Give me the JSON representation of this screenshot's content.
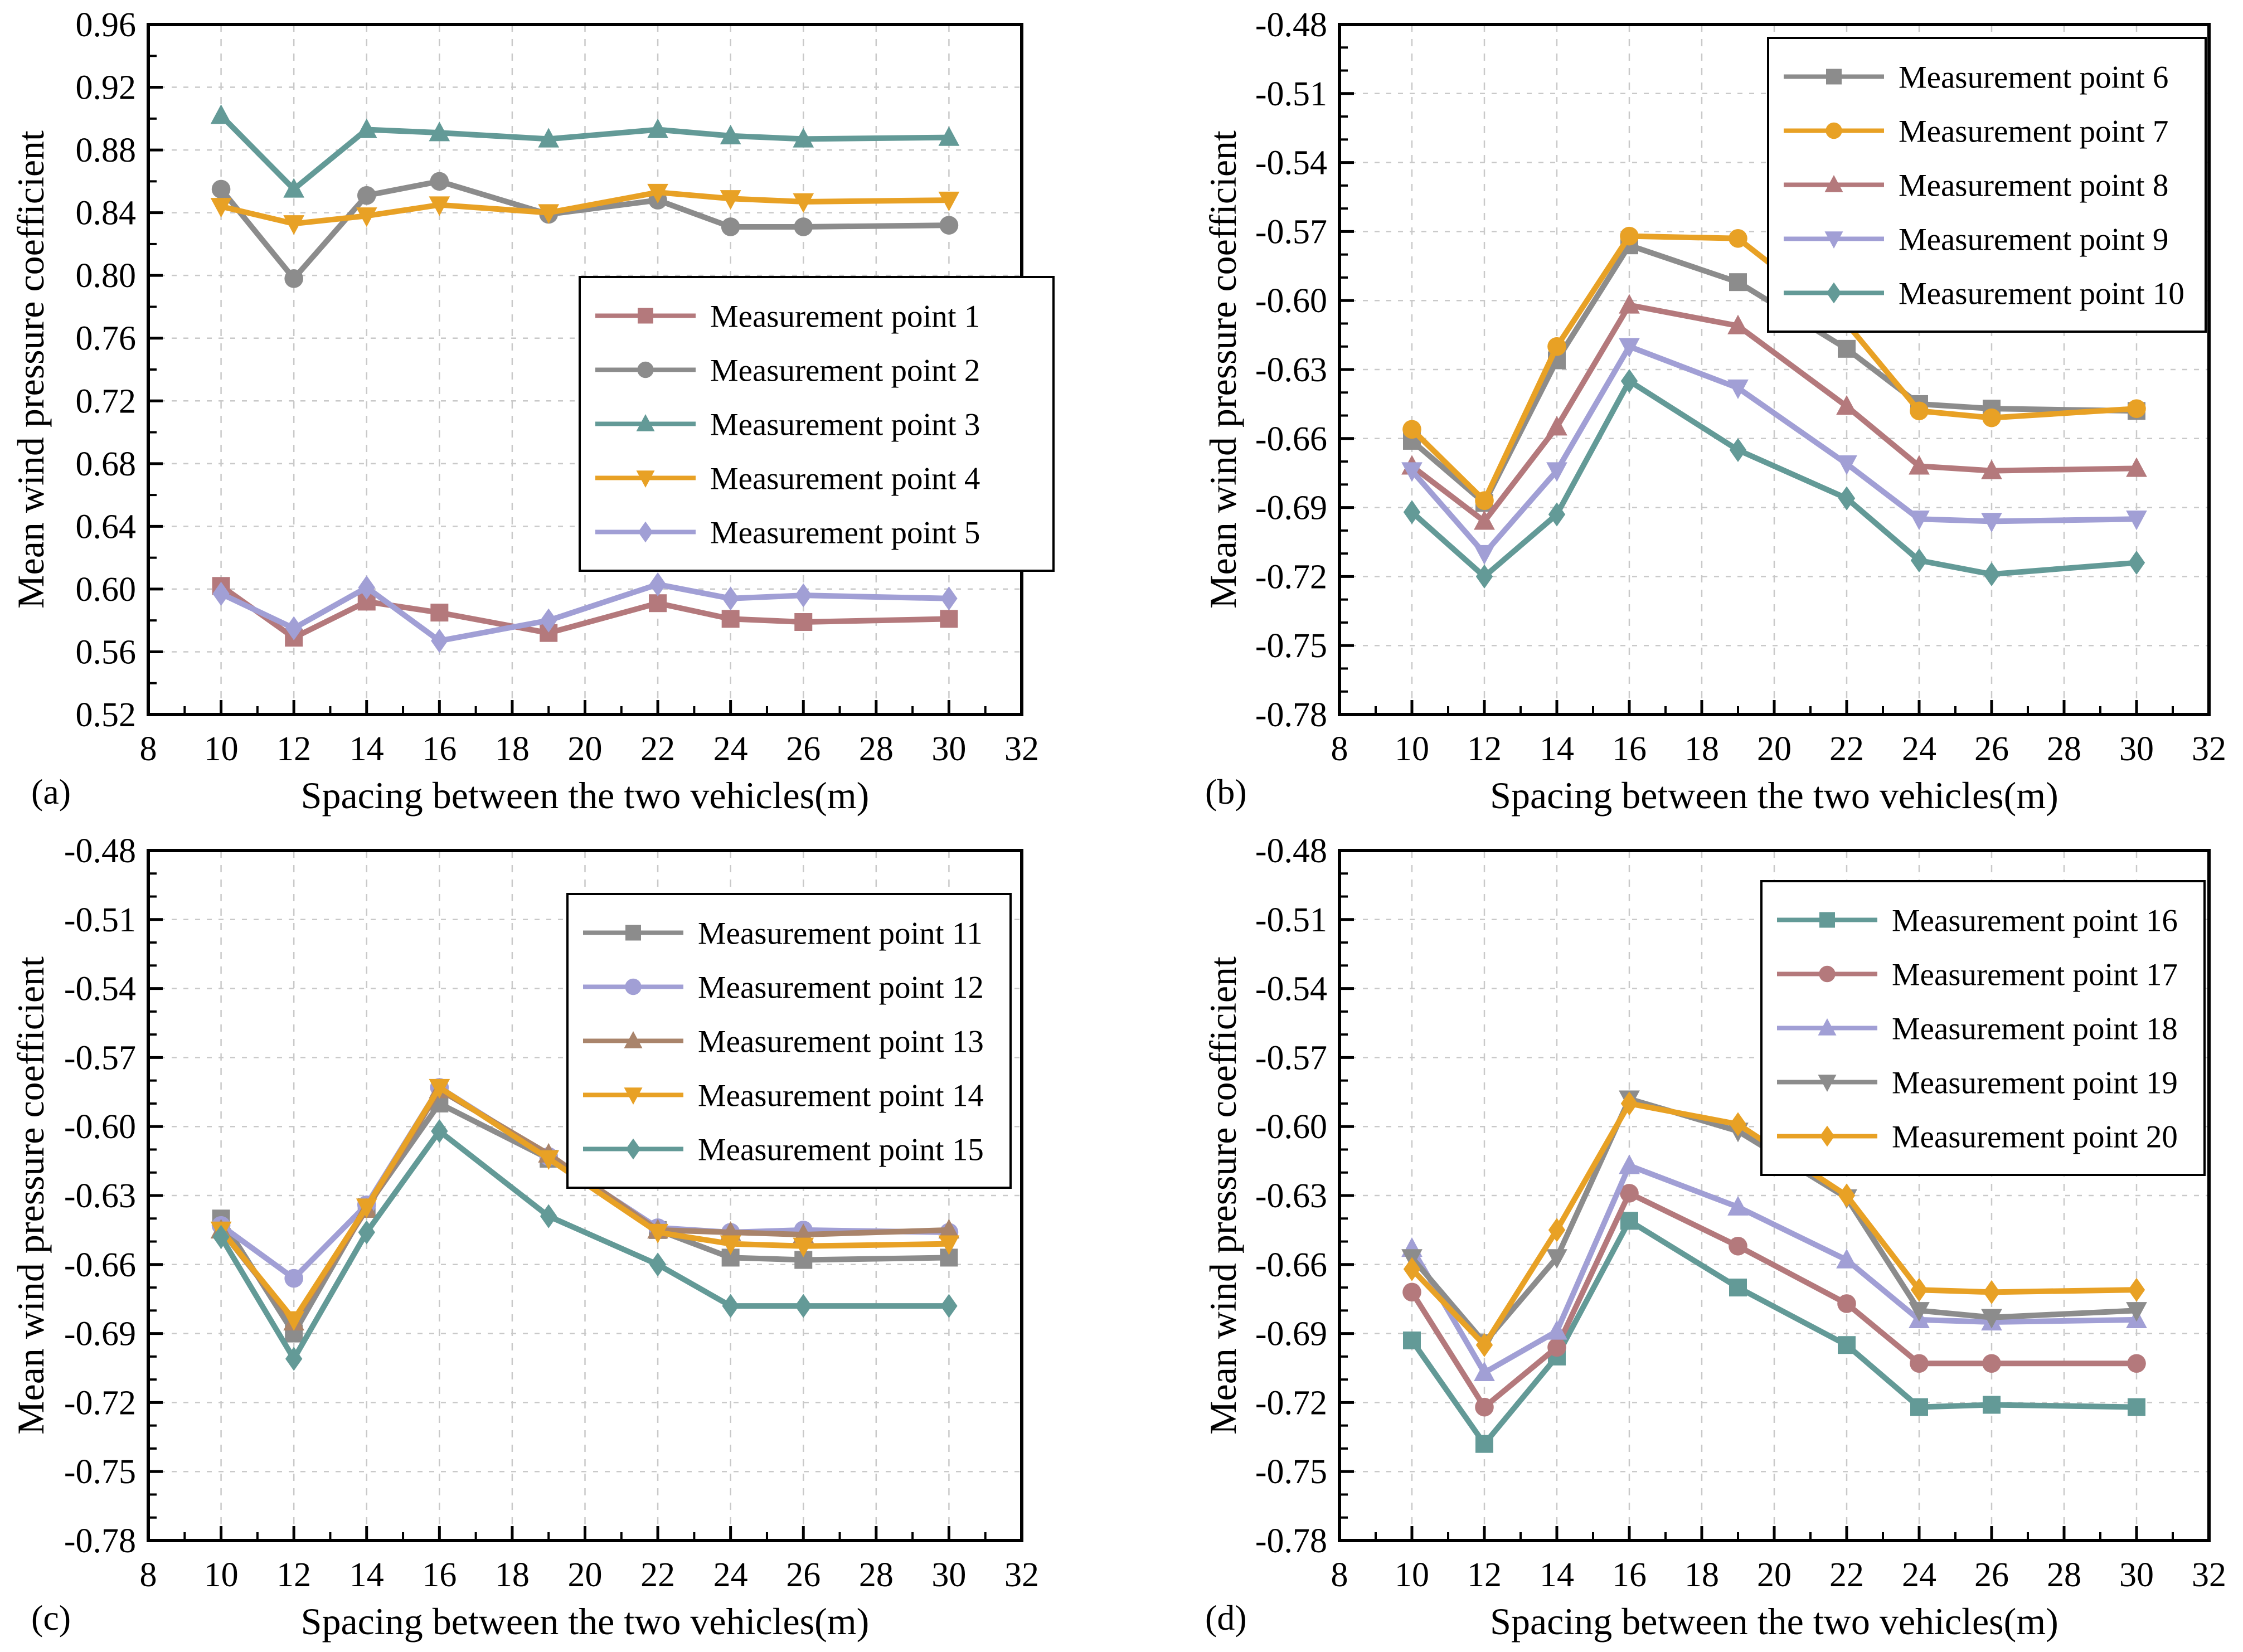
{
  "figure_title": "",
  "accent_colors": {
    "rose": "#b4797c",
    "gray": "#8c8c8c",
    "teal": "#639a97",
    "orange": "#e8a125",
    "purple": "#a19fd5",
    "brown": "#a9846b",
    "grid": "#c9c9c9",
    "axis": "#000000"
  },
  "chart_data": [
    {
      "type": "line",
      "panel_label": "(a)",
      "xlabel": "Spacing between the two vehicles(m)",
      "ylabel": "Mean wind pressure coefficient",
      "xlim": [
        8,
        32
      ],
      "ylim": [
        0.52,
        0.96
      ],
      "xticks": [
        8,
        10,
        12,
        14,
        16,
        18,
        20,
        22,
        24,
        26,
        28,
        30,
        32
      ],
      "yticks": [
        0.52,
        0.56,
        0.6,
        0.64,
        0.68,
        0.72,
        0.76,
        0.8,
        0.84,
        0.88,
        0.92,
        0.96
      ],
      "x_minor_step": 1,
      "y_minor_step": 0.02,
      "grid": true,
      "legend_position": "center-right",
      "x": [
        10,
        12,
        14,
        16,
        19,
        22,
        24,
        26,
        30
      ],
      "series": [
        {
          "name": "Measurement point 1",
          "color": "#b4797c",
          "marker": "square",
          "values": [
            0.602,
            0.569,
            0.592,
            0.585,
            0.572,
            0.591,
            0.581,
            0.579,
            0.581
          ]
        },
        {
          "name": "Measurement point 2",
          "color": "#8c8c8c",
          "marker": "circle",
          "values": [
            0.855,
            0.798,
            0.851,
            0.86,
            0.839,
            0.848,
            0.831,
            0.831,
            0.832
          ]
        },
        {
          "name": "Measurement point 3",
          "color": "#639a97",
          "marker": "triangle-up",
          "values": [
            0.902,
            0.855,
            0.893,
            0.891,
            0.887,
            0.893,
            0.889,
            0.887,
            0.888
          ]
        },
        {
          "name": "Measurement point 4",
          "color": "#e8a125",
          "marker": "triangle-down",
          "values": [
            0.844,
            0.833,
            0.838,
            0.845,
            0.84,
            0.853,
            0.849,
            0.847,
            0.848
          ]
        },
        {
          "name": "Measurement point 5",
          "color": "#a19fd5",
          "marker": "diamond",
          "values": [
            0.597,
            0.575,
            0.601,
            0.567,
            0.58,
            0.603,
            0.594,
            0.596,
            0.594
          ]
        }
      ]
    },
    {
      "type": "line",
      "panel_label": "(b)",
      "xlabel": "Spacing between the two vehicles(m)",
      "ylabel": "Mean wind pressure coefficient",
      "xlim": [
        8,
        32
      ],
      "ylim": [
        -0.78,
        -0.48
      ],
      "xticks": [
        8,
        10,
        12,
        14,
        16,
        18,
        20,
        22,
        24,
        26,
        28,
        30,
        32
      ],
      "yticks": [
        -0.78,
        -0.75,
        -0.72,
        -0.69,
        -0.66,
        -0.63,
        -0.6,
        -0.57,
        -0.54,
        -0.51,
        -0.48
      ],
      "x_minor_step": 1,
      "y_minor_step": 0.01,
      "grid": true,
      "legend_position": "top-right",
      "x": [
        10,
        12,
        14,
        16,
        19,
        22,
        24,
        26,
        30
      ],
      "series": [
        {
          "name": "Measurement point 6",
          "color": "#8c8c8c",
          "marker": "square",
          "values": [
            -0.661,
            -0.688,
            -0.626,
            -0.576,
            -0.592,
            -0.621,
            -0.645,
            -0.647,
            -0.648
          ]
        },
        {
          "name": "Measurement point 7",
          "color": "#e8a125",
          "marker": "circle",
          "values": [
            -0.656,
            -0.687,
            -0.62,
            -0.572,
            -0.573,
            -0.61,
            -0.648,
            -0.651,
            -0.647
          ]
        },
        {
          "name": "Measurement point 8",
          "color": "#b4797c",
          "marker": "triangle-up",
          "values": [
            -0.672,
            -0.696,
            -0.655,
            -0.602,
            -0.611,
            -0.646,
            -0.672,
            -0.674,
            -0.673
          ]
        },
        {
          "name": "Measurement point 9",
          "color": "#a19fd5",
          "marker": "triangle-down",
          "values": [
            -0.674,
            -0.71,
            -0.674,
            -0.62,
            -0.638,
            -0.671,
            -0.695,
            -0.696,
            -0.695
          ]
        },
        {
          "name": "Measurement point 10",
          "color": "#639a97",
          "marker": "diamond",
          "values": [
            -0.692,
            -0.72,
            -0.693,
            -0.635,
            -0.665,
            -0.686,
            -0.713,
            -0.719,
            -0.714
          ]
        }
      ]
    },
    {
      "type": "line",
      "panel_label": "(c)",
      "xlabel": "Spacing between the two vehicles(m)",
      "ylabel": "Mean wind pressure coefficient",
      "xlim": [
        8,
        32
      ],
      "ylim": [
        -0.78,
        -0.48
      ],
      "xticks": [
        8,
        10,
        12,
        14,
        16,
        18,
        20,
        22,
        24,
        26,
        28,
        30,
        32
      ],
      "yticks": [
        -0.78,
        -0.75,
        -0.72,
        -0.69,
        -0.66,
        -0.63,
        -0.6,
        -0.57,
        -0.54,
        -0.51,
        -0.48
      ],
      "x_minor_step": 1,
      "y_minor_step": 0.01,
      "grid": true,
      "legend_position": "top-right",
      "x": [
        10,
        12,
        14,
        16,
        19,
        22,
        24,
        26,
        30
      ],
      "series": [
        {
          "name": "Measurement point 11",
          "color": "#8c8c8c",
          "marker": "square",
          "values": [
            -0.64,
            -0.69,
            -0.635,
            -0.59,
            -0.614,
            -0.645,
            -0.657,
            -0.658,
            -0.657
          ]
        },
        {
          "name": "Measurement point 12",
          "color": "#a19fd5",
          "marker": "circle",
          "values": [
            -0.643,
            -0.666,
            -0.634,
            -0.583,
            -0.613,
            -0.644,
            -0.646,
            -0.645,
            -0.646
          ]
        },
        {
          "name": "Measurement point 13",
          "color": "#a9846b",
          "marker": "triangle-up",
          "values": [
            -0.645,
            -0.685,
            -0.636,
            -0.584,
            -0.612,
            -0.645,
            -0.646,
            -0.647,
            -0.645
          ]
        },
        {
          "name": "Measurement point 14",
          "color": "#e8a125",
          "marker": "triangle-down",
          "values": [
            -0.645,
            -0.684,
            -0.635,
            -0.583,
            -0.614,
            -0.646,
            -0.651,
            -0.652,
            -0.651
          ]
        },
        {
          "name": "Measurement point 15",
          "color": "#639a97",
          "marker": "diamond",
          "values": [
            -0.648,
            -0.701,
            -0.646,
            -0.602,
            -0.639,
            -0.66,
            -0.678,
            -0.678,
            -0.678
          ]
        }
      ]
    },
    {
      "type": "line",
      "panel_label": "(d)",
      "xlabel": "Spacing between the two vehicles(m)",
      "ylabel": "Mean wind pressure coefficient",
      "xlim": [
        8,
        32
      ],
      "ylim": [
        -0.78,
        -0.48
      ],
      "xticks": [
        8,
        10,
        12,
        14,
        16,
        18,
        20,
        22,
        24,
        26,
        28,
        30,
        32
      ],
      "yticks": [
        -0.78,
        -0.75,
        -0.72,
        -0.69,
        -0.66,
        -0.63,
        -0.6,
        -0.57,
        -0.54,
        -0.51,
        -0.48
      ],
      "x_minor_step": 1,
      "y_minor_step": 0.01,
      "grid": true,
      "legend_position": "top-right",
      "x": [
        10,
        12,
        14,
        16,
        19,
        22,
        24,
        26,
        30
      ],
      "series": [
        {
          "name": "Measurement point 16",
          "color": "#639a97",
          "marker": "square",
          "values": [
            -0.693,
            -0.738,
            -0.7,
            -0.641,
            -0.67,
            -0.695,
            -0.722,
            -0.721,
            -0.722
          ]
        },
        {
          "name": "Measurement point 17",
          "color": "#b4797c",
          "marker": "circle",
          "values": [
            -0.672,
            -0.722,
            -0.696,
            -0.629,
            -0.652,
            -0.677,
            -0.703,
            -0.703,
            -0.703
          ]
        },
        {
          "name": "Measurement point 18",
          "color": "#a19fd5",
          "marker": "triangle-up",
          "values": [
            -0.653,
            -0.707,
            -0.689,
            -0.617,
            -0.635,
            -0.658,
            -0.684,
            -0.685,
            -0.684
          ]
        },
        {
          "name": "Measurement point 19",
          "color": "#8c8c8c",
          "marker": "triangle-down",
          "values": [
            -0.657,
            -0.694,
            -0.657,
            -0.588,
            -0.602,
            -0.631,
            -0.68,
            -0.683,
            -0.68
          ]
        },
        {
          "name": "Measurement point 20",
          "color": "#e8a125",
          "marker": "diamond",
          "values": [
            -0.662,
            -0.695,
            -0.645,
            -0.59,
            -0.599,
            -0.63,
            -0.671,
            -0.672,
            -0.671
          ]
        }
      ]
    }
  ]
}
